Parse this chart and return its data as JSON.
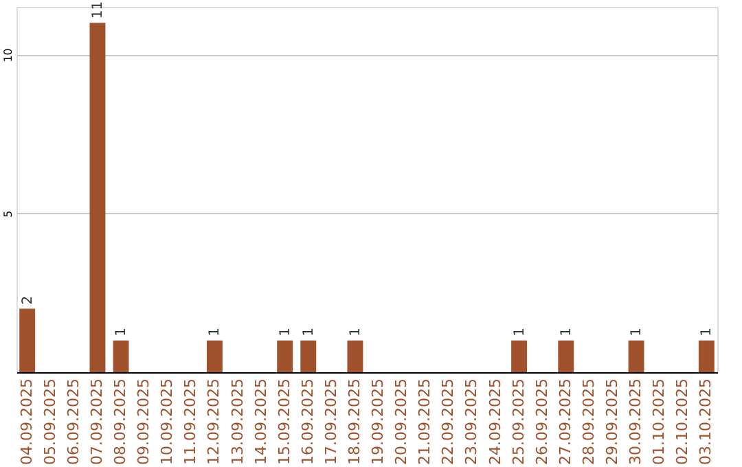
{
  "chart_data": {
    "type": "bar",
    "categories": [
      "04.09.2025",
      "05.09.2025",
      "06.09.2025",
      "07.09.2025",
      "08.09.2025",
      "09.09.2025",
      "10.09.2025",
      "11.09.2025",
      "12.09.2025",
      "13.09.2025",
      "14.09.2025",
      "15.09.2025",
      "16.09.2025",
      "17.09.2025",
      "18.09.2025",
      "19.09.2025",
      "20.09.2025",
      "21.09.2025",
      "22.09.2025",
      "23.09.2025",
      "24.09.2025",
      "25.09.2025",
      "26.09.2025",
      "27.09.2025",
      "28.09.2025",
      "29.09.2025",
      "30.09.2025",
      "01.10.2025",
      "02.10.2025",
      "03.10.2025"
    ],
    "values": [
      2,
      0,
      0,
      11,
      1,
      0,
      0,
      0,
      1,
      0,
      0,
      1,
      1,
      0,
      1,
      0,
      0,
      0,
      0,
      0,
      0,
      1,
      0,
      1,
      0,
      0,
      1,
      0,
      0,
      1
    ],
    "value_labels": [
      "2",
      null,
      null,
      "11",
      "1",
      null,
      null,
      null,
      "1",
      null,
      null,
      "1",
      "1",
      null,
      "1",
      null,
      null,
      null,
      null,
      null,
      null,
      "1",
      null,
      "1",
      null,
      null,
      "1",
      null,
      null,
      "1"
    ],
    "color": "#a0522d",
    "ylim": [
      0,
      11.5
    ],
    "yticks": [
      5,
      10
    ],
    "grid": "y"
  }
}
